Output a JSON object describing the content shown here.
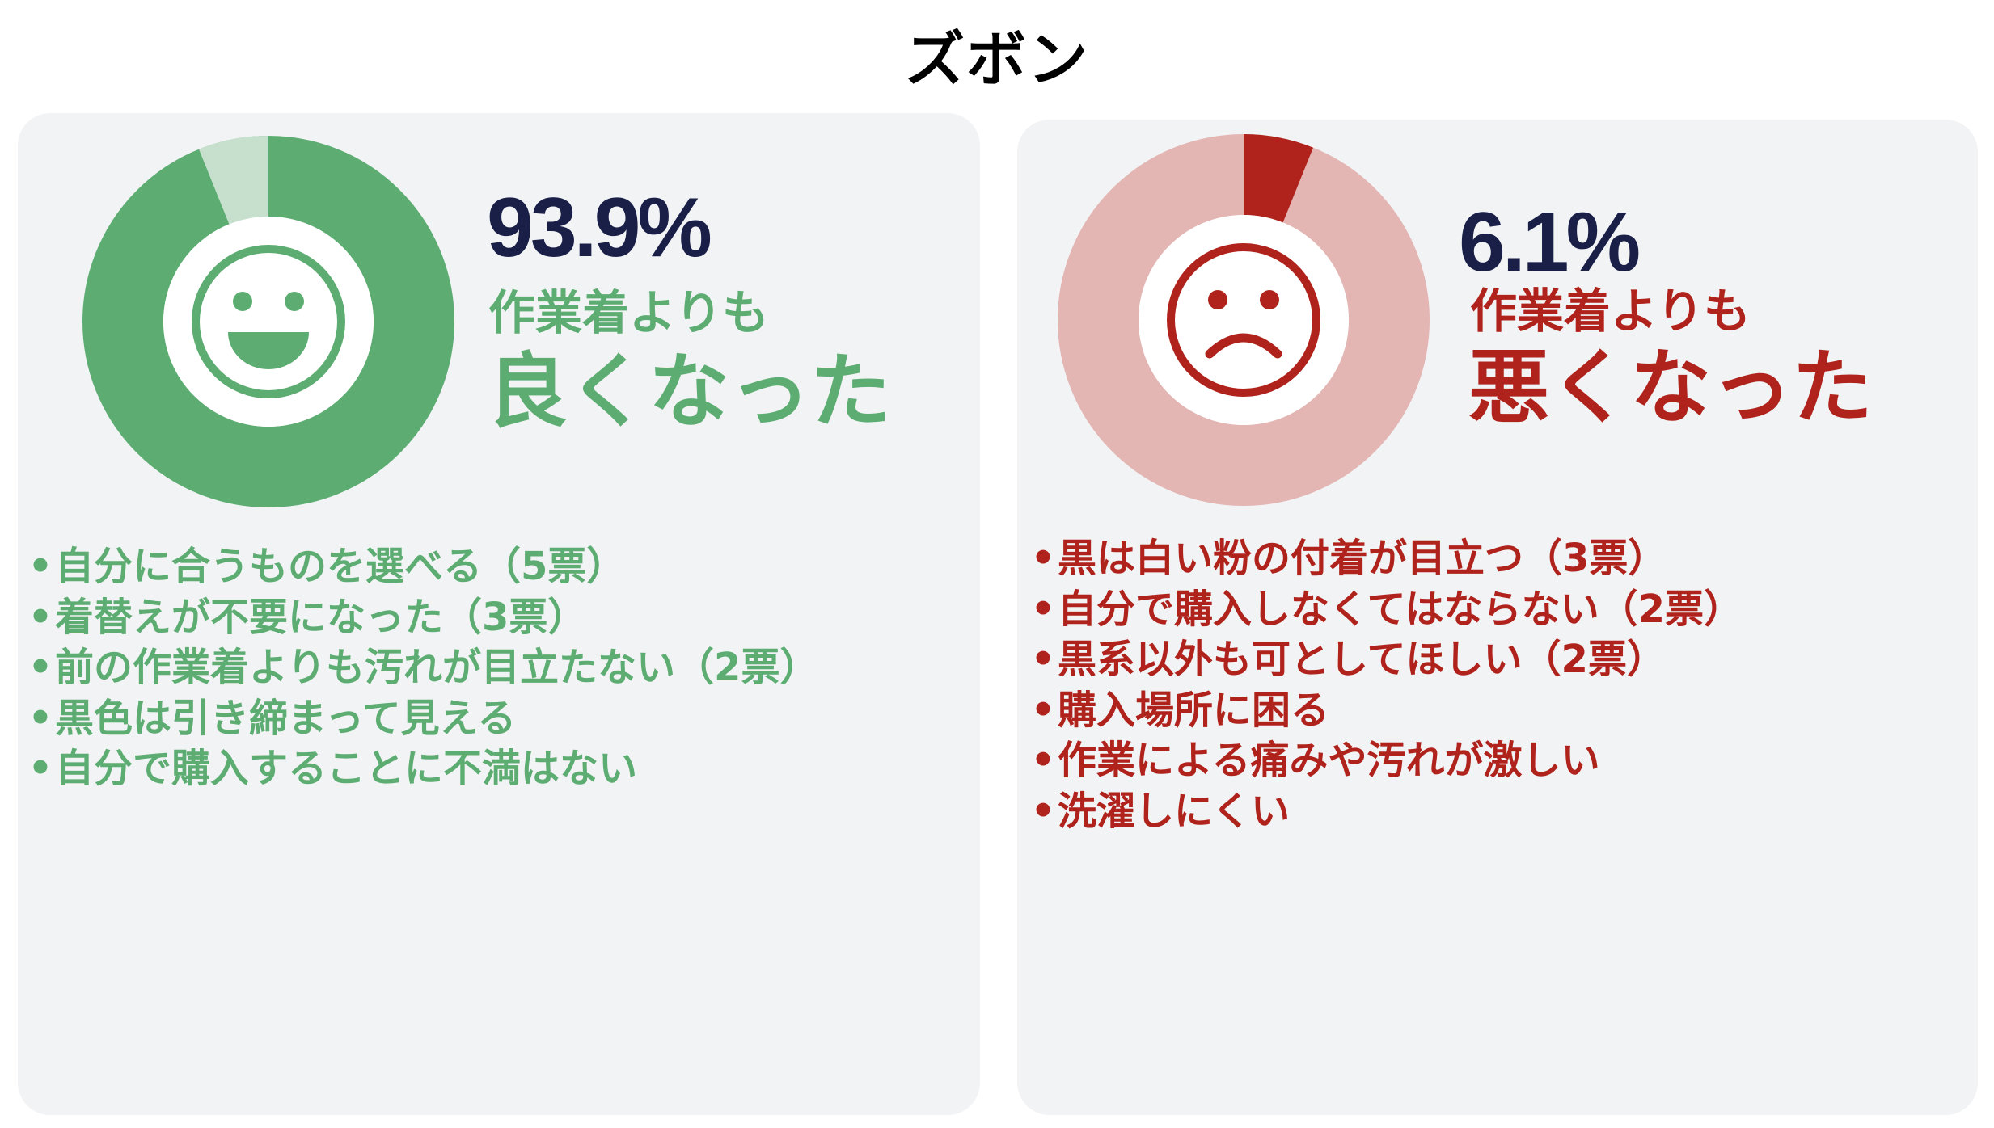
{
  "title": "ズボン",
  "colors": {
    "good": "#5dad73",
    "good_light": "#c6e0cd",
    "bad": "#b0231c",
    "bad_light": "#e3b5b3",
    "percent_text": "#1a1f47",
    "card_bg": "#f2f3f5"
  },
  "chart_data": [
    {
      "type": "pie",
      "variant": "donut",
      "highlight_value": 93.9,
      "values": [
        93.9,
        6.1
      ],
      "percent_label": "93.9%",
      "subtitle": "作業着よりも",
      "verdict": "良くなった",
      "center_icon": "smile-face-icon",
      "reasons": [
        "自分に合うものを選べる（5票）",
        "着替えが不要になった（3票）",
        "前の作業着よりも汚れが目立たない（2票）",
        "黒色は引き締まって見える",
        "自分で購入することに不満はない"
      ]
    },
    {
      "type": "pie",
      "variant": "donut",
      "highlight_value": 6.1,
      "values": [
        6.1,
        93.9
      ],
      "percent_label": "6.1%",
      "subtitle": "作業着よりも",
      "verdict": "悪くなった",
      "center_icon": "sad-face-icon",
      "reasons": [
        "黒は白い粉の付着が目立つ（3票）",
        "自分で購入しなくてはならない（2票）",
        "黒系以外も可としてほしい（2票）",
        "購入場所に困る",
        "作業による痛みや汚れが激しい",
        "洗濯しにくい"
      ]
    }
  ]
}
